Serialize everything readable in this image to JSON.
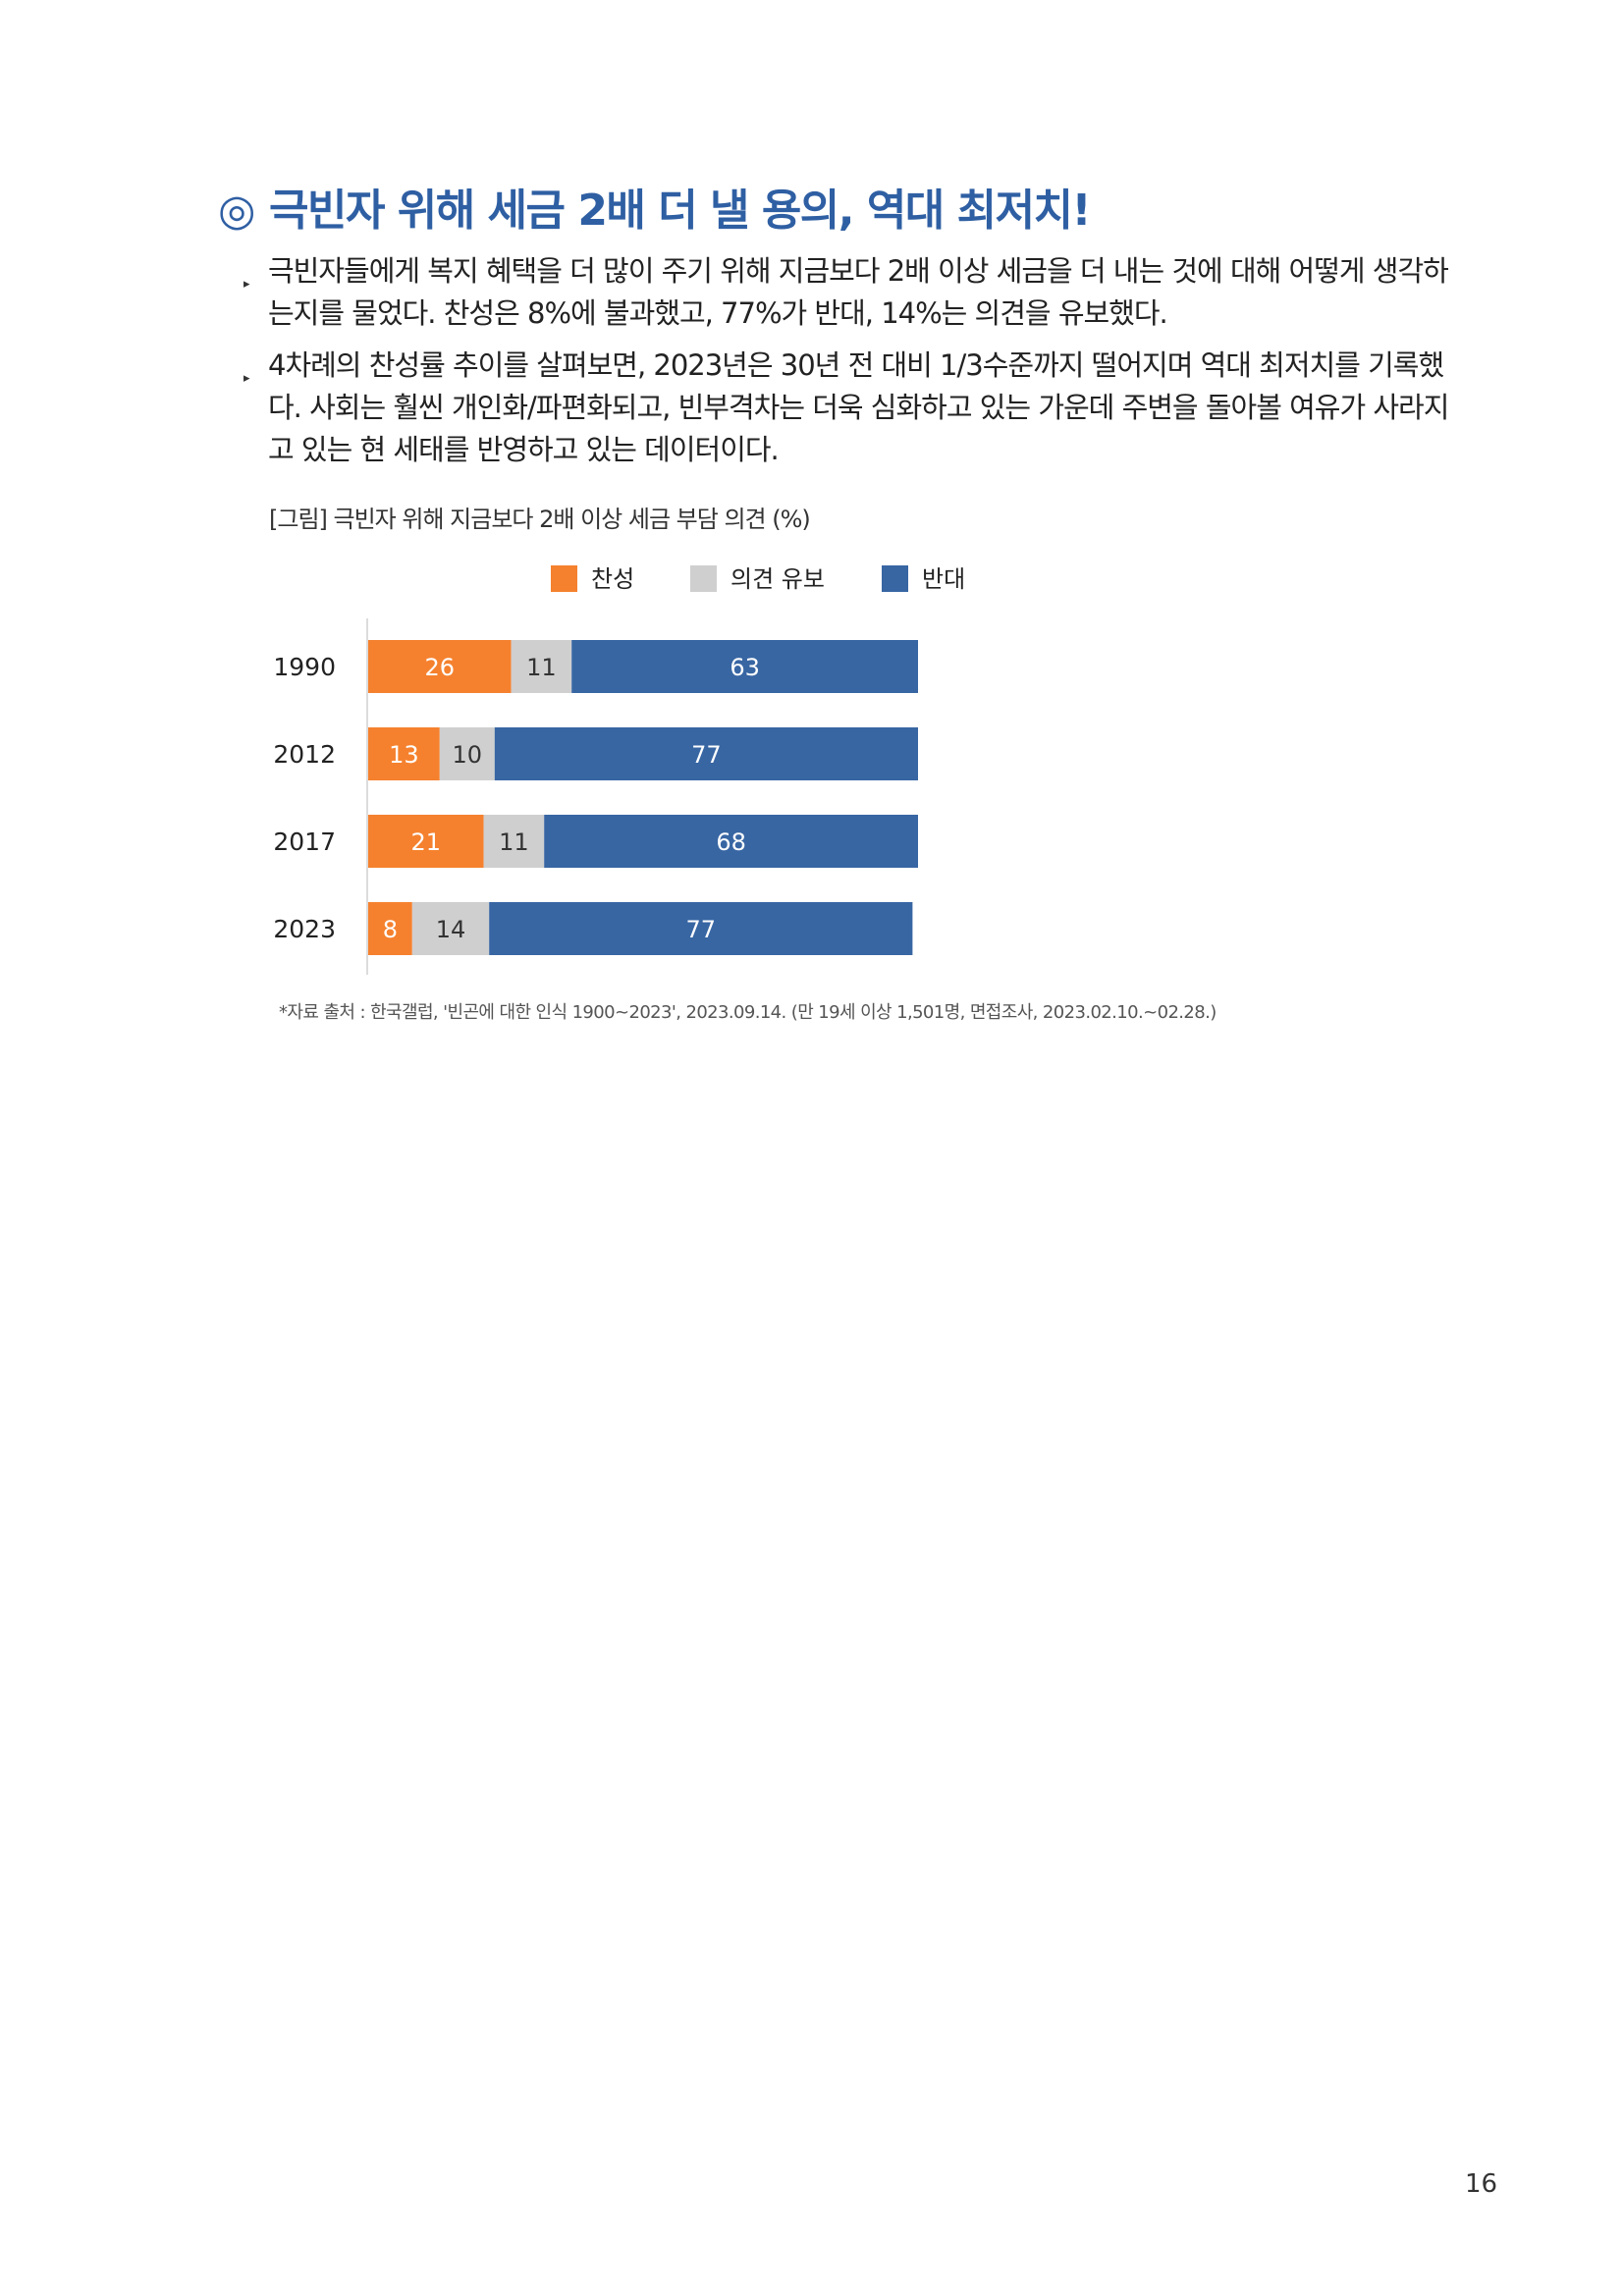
{
  "title": "◎ 극빈자 위해 세금 2배 더 낼 용의, 역대 최저치!",
  "title_mark": "◎",
  "title_text": "극빈자 위해 세금 2배 더 낼 용의, 역대 최저치!",
  "bullets": [
    {
      "marker": "▸",
      "lines": [
        "극빈자들에게 복지 혜택을 더 많이 주기 위해 지금보다 2배 이상 세금을 더 내는 것에 대해 어떻게 생각하",
        "는지를 물었다. 찬성은 8%에 불과했고, 77%가 반대, 14%는 의견을 유보했다."
      ]
    },
    {
      "marker": "▸",
      "lines": [
        "4차례의 찬성률 추이를 살펴보면, 2023년은 30년 전 대비 1/3수준까지 떨어지며 역대 최저치를 기록했",
        "다. 사회는 훨씬 개인화/파편화되고, 빈부격차는 더욱 심화하고 있는 가운데 주변을 돌아볼 여유가 사라지",
        "고 있는 현 세태를 반영하고 있는 데이터이다."
      ]
    }
  ],
  "figure_caption": "[그림] 극빈자 위해 지금보다 2배 이상 세금 부담 의견 (%)",
  "chart_data": {
    "type": "bar",
    "orientation": "horizontal",
    "stacked": true,
    "categories": [
      "1990",
      "2012",
      "2017",
      "2023"
    ],
    "series": [
      {
        "name": "찬성",
        "color": "#f5812e",
        "values": [
          26,
          13,
          21,
          8
        ]
      },
      {
        "name": "의견 유보",
        "color": "#cfcfcf",
        "values": [
          11,
          10,
          11,
          14
        ]
      },
      {
        "name": "반대",
        "color": "#3866a3",
        "values": [
          63,
          77,
          68,
          77
        ]
      }
    ],
    "xlim": [
      0,
      100
    ],
    "legend_position": "top-center",
    "grid": false
  },
  "footnote": "*자료 출처 : 한국갤럽, '빈곤에 대한 인식 1900~2023', 2023.09.14. (만 19세 이상 1,501명, 면접조사, 2023.02.10.~02.28.)",
  "page_number": "16"
}
